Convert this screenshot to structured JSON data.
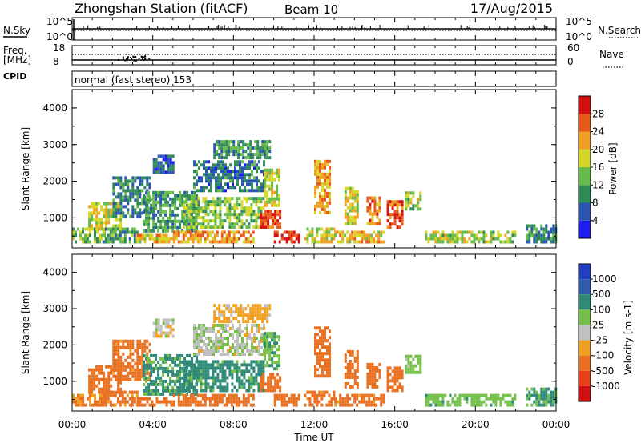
{
  "header": {
    "station": "Zhongshan Station (fitACF)",
    "beam": "Beam 10",
    "date": "17/Aug/2015"
  },
  "top_panels": {
    "nsky_label": "N.Sky",
    "nsky_ticks": [
      "10^5",
      "10^0"
    ],
    "nsearch_label": "N.Search",
    "nsearch_ticks": [
      "10^5",
      "10^0"
    ],
    "freq_label": "Freq.",
    "freq_unit": "[MHz]",
    "freq_ticks": [
      "18",
      "8"
    ],
    "nave_label": "Nave",
    "nave_ticks": [
      "60",
      "0"
    ],
    "cpid_label": "CPID",
    "cpid_text": "normal (fast stereo) 153"
  },
  "colors": {
    "power_scale": [
      "#1e1ef0",
      "#2a55b0",
      "#2e8b57",
      "#66bb4a",
      "#d6d62a",
      "#f0a020",
      "#e8581a",
      "#d41010"
    ],
    "velocity_scale": [
      "#2040c0",
      "#2e5cab",
      "#2f8a78",
      "#74c04a",
      "#c0c0c0",
      "#f0a020",
      "#e87020",
      "#e84018",
      "#d01010"
    ]
  },
  "chart_data": [
    {
      "type": "heatmap",
      "title": "",
      "xlabel": "Time UT",
      "ylabel": "Slant Range [km]",
      "xlim": [
        0,
        24
      ],
      "ylim": [
        180,
        4500
      ],
      "x_ticks": [
        "00:00",
        "04:00",
        "08:00",
        "12:00",
        "16:00",
        "20:00",
        "00:00"
      ],
      "y_ticks": [
        1000,
        2000,
        3000,
        4000
      ],
      "y_tick_labels": [
        "1000",
        "2000",
        "3000",
        "4000"
      ],
      "colorbar": {
        "label": "Power [dB]",
        "range": [
          0,
          32
        ],
        "ticks": [
          4,
          8,
          12,
          16,
          20,
          24,
          28
        ],
        "tick_labels": [
          "4",
          "8",
          "12",
          "16",
          "20",
          "24",
          "28"
        ]
      },
      "echo_regions": [
        {
          "t0": 0.0,
          "t1": 1.6,
          "r0": 300,
          "r1": 650,
          "value": 14
        },
        {
          "t0": 0.8,
          "t1": 2.4,
          "r0": 650,
          "r1": 1400,
          "value": 18
        },
        {
          "t0": 1.5,
          "t1": 3.2,
          "r0": 300,
          "r1": 700,
          "value": 12
        },
        {
          "t0": 2.0,
          "t1": 3.8,
          "r0": 1000,
          "r1": 2100,
          "value": 9
        },
        {
          "t0": 3.2,
          "t1": 5.0,
          "r0": 300,
          "r1": 550,
          "value": 20
        },
        {
          "t0": 3.5,
          "t1": 6.2,
          "r0": 600,
          "r1": 1700,
          "value": 11
        },
        {
          "t0": 4.0,
          "t1": 5.0,
          "r0": 2200,
          "r1": 2700,
          "value": 6
        },
        {
          "t0": 5.0,
          "t1": 9.0,
          "r0": 300,
          "r1": 600,
          "value": 22
        },
        {
          "t0": 5.5,
          "t1": 9.5,
          "r0": 700,
          "r1": 1500,
          "value": 15
        },
        {
          "t0": 6.0,
          "t1": 9.5,
          "r0": 1700,
          "r1": 2500,
          "value": 8
        },
        {
          "t0": 7.0,
          "t1": 9.8,
          "r0": 2600,
          "r1": 3100,
          "value": 10
        },
        {
          "t0": 9.3,
          "t1": 10.3,
          "r0": 700,
          "r1": 1200,
          "value": 27
        },
        {
          "t0": 9.5,
          "t1": 10.3,
          "r0": 1300,
          "r1": 2300,
          "value": 17
        },
        {
          "t0": 10.0,
          "t1": 11.2,
          "r0": 300,
          "r1": 600,
          "value": 29
        },
        {
          "t0": 11.5,
          "t1": 13.0,
          "r0": 300,
          "r1": 700,
          "value": 18
        },
        {
          "t0": 12.0,
          "t1": 12.8,
          "r0": 1100,
          "r1": 2500,
          "value": 22
        },
        {
          "t0": 13.0,
          "t1": 15.5,
          "r0": 300,
          "r1": 600,
          "value": 20
        },
        {
          "t0": 13.5,
          "t1": 14.2,
          "r0": 800,
          "r1": 1800,
          "value": 19
        },
        {
          "t0": 14.6,
          "t1": 15.2,
          "r0": 800,
          "r1": 1500,
          "value": 24
        },
        {
          "t0": 15.6,
          "t1": 16.4,
          "r0": 700,
          "r1": 1400,
          "value": 27
        },
        {
          "t0": 16.5,
          "t1": 17.3,
          "r0": 1200,
          "r1": 1700,
          "value": 16
        },
        {
          "t0": 17.5,
          "t1": 22.0,
          "r0": 300,
          "r1": 600,
          "value": 16
        },
        {
          "t0": 22.5,
          "t1": 24.0,
          "r0": 300,
          "r1": 800,
          "value": 9
        }
      ]
    },
    {
      "type": "heatmap",
      "title": "",
      "xlabel": "Time UT",
      "ylabel": "Slant Range [km]",
      "xlim": [
        0,
        24
      ],
      "ylim": [
        180,
        4500
      ],
      "x_ticks": [
        "00:00",
        "04:00",
        "08:00",
        "12:00",
        "16:00",
        "20:00",
        "00:00"
      ],
      "y_ticks": [
        1000,
        2000,
        3000,
        4000
      ],
      "y_tick_labels": [
        "1000",
        "2000",
        "3000",
        "4000"
      ],
      "colorbar": {
        "label": "Velocity [m s-1]",
        "tick_labels": [
          "1000",
          "500",
          "100",
          "25",
          "-25",
          "-100",
          "-500",
          "-1000"
        ]
      },
      "echo_regions": [
        {
          "t0": 0.0,
          "t1": 1.6,
          "r0": 300,
          "r1": 650,
          "value": -120
        },
        {
          "t0": 0.8,
          "t1": 2.4,
          "r0": 650,
          "r1": 1400,
          "value": -200
        },
        {
          "t0": 1.5,
          "t1": 3.2,
          "r0": 300,
          "r1": 700,
          "value": -150
        },
        {
          "t0": 2.0,
          "t1": 3.8,
          "r0": 1000,
          "r1": 2100,
          "value": -180
        },
        {
          "t0": 3.2,
          "t1": 5.0,
          "r0": 300,
          "r1": 550,
          "value": -300
        },
        {
          "t0": 3.5,
          "t1": 6.2,
          "r0": 600,
          "r1": 1700,
          "value": 140
        },
        {
          "t0": 4.0,
          "t1": 5.0,
          "r0": 2200,
          "r1": 2700,
          "value": 0
        },
        {
          "t0": 5.0,
          "t1": 9.0,
          "r0": 300,
          "r1": 600,
          "value": -250
        },
        {
          "t0": 5.5,
          "t1": 9.5,
          "r0": 700,
          "r1": 1500,
          "value": 160
        },
        {
          "t0": 6.0,
          "t1": 9.5,
          "r0": 1700,
          "r1": 2500,
          "value": 10
        },
        {
          "t0": 7.0,
          "t1": 9.8,
          "r0": 2600,
          "r1": 3100,
          "value": -60
        },
        {
          "t0": 9.3,
          "t1": 10.3,
          "r0": 700,
          "r1": 1200,
          "value": -300
        },
        {
          "t0": 9.5,
          "t1": 10.3,
          "r0": 1300,
          "r1": 2300,
          "value": 80
        },
        {
          "t0": 10.0,
          "t1": 11.2,
          "r0": 300,
          "r1": 600,
          "value": -200
        },
        {
          "t0": 11.5,
          "t1": 13.0,
          "r0": 300,
          "r1": 700,
          "value": -150
        },
        {
          "t0": 12.0,
          "t1": 12.8,
          "r0": 1100,
          "r1": 2500,
          "value": -200
        },
        {
          "t0": 13.0,
          "t1": 15.5,
          "r0": 300,
          "r1": 600,
          "value": -180
        },
        {
          "t0": 13.5,
          "t1": 14.2,
          "r0": 800,
          "r1": 1800,
          "value": -250
        },
        {
          "t0": 14.6,
          "t1": 15.2,
          "r0": 800,
          "r1": 1500,
          "value": -200
        },
        {
          "t0": 15.6,
          "t1": 16.4,
          "r0": 700,
          "r1": 1400,
          "value": -200
        },
        {
          "t0": 16.5,
          "t1": 17.3,
          "r0": 1200,
          "r1": 1700,
          "value": 60
        },
        {
          "t0": 17.5,
          "t1": 22.0,
          "r0": 300,
          "r1": 600,
          "value": 70
        },
        {
          "t0": 22.5,
          "t1": 24.0,
          "r0": 300,
          "r1": 800,
          "value": 120
        }
      ]
    }
  ]
}
